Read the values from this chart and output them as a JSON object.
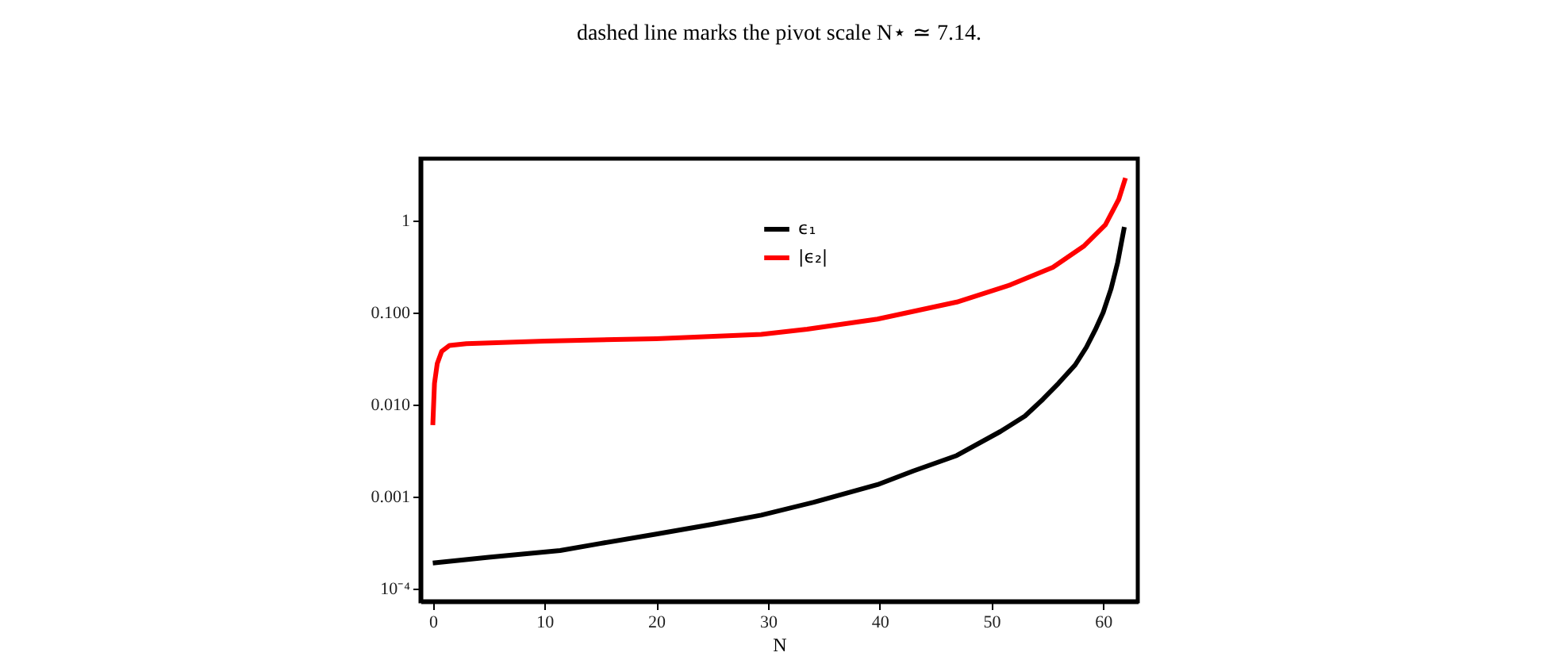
{
  "chart_data": {
    "type": "line",
    "xlabel": "N",
    "annotations": [
      "dashed line marks the pivot scale N⋆ ≃ 7.14."
    ],
    "log": "y",
    "xlim": [
      -1.1,
      63.1
    ],
    "ylim": [
      7.3e-05,
      4.7
    ],
    "xticks": [
      0,
      10,
      20,
      30,
      40,
      50,
      60
    ],
    "yticks": [
      {
        "value": 0.0001,
        "label": "10⁻⁴"
      },
      0.001,
      {
        "value": 0.01,
        "label": "0.010"
      },
      {
        "value": 0.1,
        "label": "0.100"
      },
      1
    ],
    "grid": false,
    "legend": "top",
    "marker": "none",
    "line_style": "solid",
    "series": [
      {
        "name": "ϵ₁",
        "color": "#000000",
        "x": [
          0,
          5,
          11.4,
          15,
          19.9,
          25,
          29.4,
          34.1,
          39.8,
          43,
          46.9,
          50.8,
          53,
          54.6,
          56,
          57.5,
          58.5,
          59.3,
          60,
          60.7,
          61.3,
          61.9
        ],
        "values": [
          0.00019,
          0.00022,
          0.00026,
          0.00031,
          0.00039,
          0.0005,
          0.00063,
          0.00087,
          0.00135,
          0.0019,
          0.0028,
          0.0051,
          0.0075,
          0.0114,
          0.017,
          0.027,
          0.042,
          0.065,
          0.1,
          0.18,
          0.35,
          0.85
        ]
      },
      {
        "name": "|ϵ₂|",
        "color": "#ff0000",
        "x": [
          0,
          0.15,
          0.4,
          0.8,
          1.5,
          3,
          10,
          20,
          29.4,
          33.5,
          39.8,
          46.9,
          51.7,
          55.5,
          58.3,
          60.2,
          61.4,
          62
        ],
        "values": [
          0.006,
          0.017,
          0.028,
          0.038,
          0.044,
          0.046,
          0.049,
          0.052,
          0.058,
          0.066,
          0.085,
          0.13,
          0.2,
          0.31,
          0.53,
          0.9,
          1.7,
          2.9
        ]
      }
    ]
  }
}
